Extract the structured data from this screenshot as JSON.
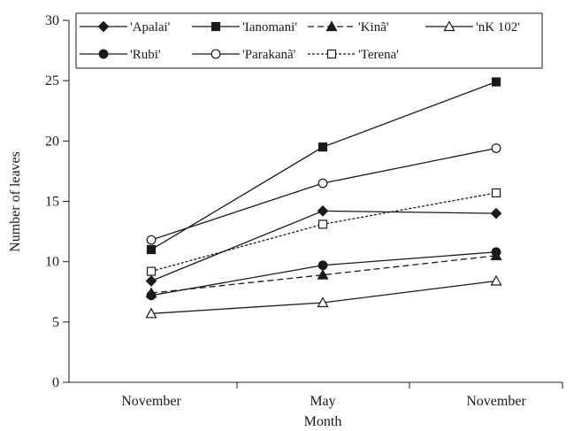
{
  "chart_data": {
    "type": "line",
    "title": "",
    "xlabel": "Month",
    "ylabel": "Number of leaves",
    "categories": [
      "November",
      "May",
      "November"
    ],
    "ylim": [
      0,
      30
    ],
    "yticks": [
      0,
      5,
      10,
      15,
      20,
      25,
      30
    ],
    "grid": false,
    "legend": "top",
    "series": [
      {
        "name": "'Apalai'",
        "marker": "diamond-filled",
        "dash": "solid",
        "values": [
          8.4,
          14.2,
          14.0
        ]
      },
      {
        "name": "'Ianomani'",
        "marker": "square-filled",
        "dash": "solid",
        "values": [
          11.0,
          19.5,
          24.9
        ]
      },
      {
        "name": "'Kinã'",
        "marker": "triangle-filled",
        "dash": "dashed",
        "values": [
          7.4,
          8.9,
          10.5
        ]
      },
      {
        "name": "'nK 102'",
        "marker": "triangle-open",
        "dash": "solid",
        "values": [
          5.7,
          6.6,
          8.4
        ]
      },
      {
        "name": "'Rubi'",
        "marker": "circle-filled",
        "dash": "solid",
        "values": [
          7.2,
          9.7,
          10.8
        ]
      },
      {
        "name": "'Parakanã'",
        "marker": "circle-open",
        "dash": "solid",
        "values": [
          11.8,
          16.5,
          19.4
        ]
      },
      {
        "name": "'Terena'",
        "marker": "square-open",
        "dash": "dotted",
        "values": [
          9.2,
          13.1,
          15.7
        ]
      }
    ]
  }
}
